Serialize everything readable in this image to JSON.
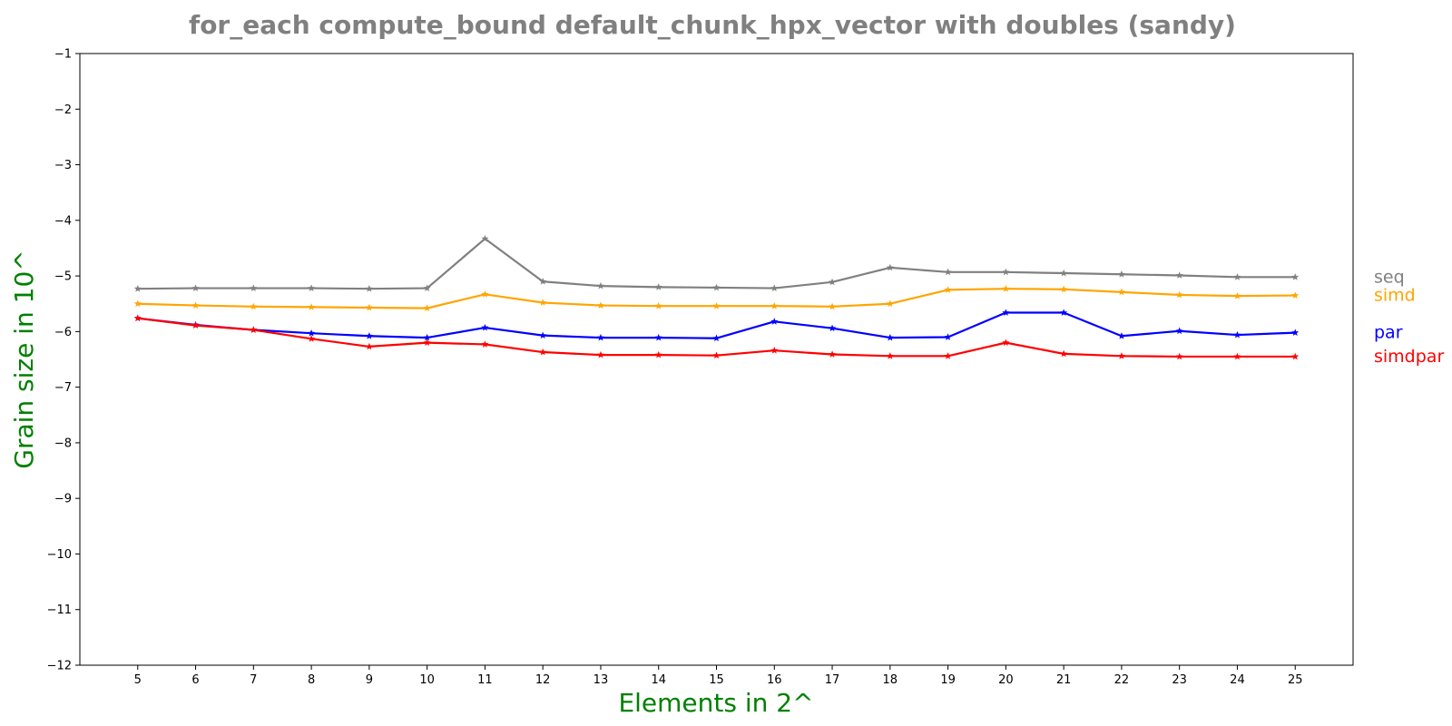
{
  "chart_data": {
    "type": "line",
    "title": "for_each compute_bound default_chunk_hpx_vector with doubles  (sandy)",
    "xlabel": "Elements in 2^",
    "ylabel": "Grain size in 10^",
    "x": [
      5,
      6,
      7,
      8,
      9,
      10,
      11,
      12,
      13,
      14,
      15,
      16,
      17,
      18,
      19,
      20,
      21,
      22,
      23,
      24,
      25
    ],
    "xlim": [
      4,
      26
    ],
    "ylim": [
      -12,
      -1
    ],
    "yticks": [
      -1,
      -2,
      -3,
      -4,
      -5,
      -6,
      -7,
      -8,
      -9,
      -10,
      -11,
      -12
    ],
    "ytick_labels": [
      "−1",
      "−2",
      "−3",
      "−4",
      "−5",
      "−6",
      "−7",
      "−8",
      "−9",
      "−10",
      "−11",
      "−12"
    ],
    "grid": false,
    "legend_placement": "right-outside",
    "series": [
      {
        "name": "seq",
        "color": "#808080",
        "marker": "star",
        "values": [
          -5.23,
          -5.22,
          -5.22,
          -5.22,
          -5.23,
          -5.22,
          -4.33,
          -5.1,
          -5.18,
          -5.2,
          -5.21,
          -5.22,
          -5.11,
          -4.85,
          -4.93,
          -4.93,
          -4.95,
          -4.97,
          -4.99,
          -5.02,
          -5.02
        ]
      },
      {
        "name": "simd",
        "color": "#ffa500",
        "marker": "star",
        "values": [
          -5.5,
          -5.53,
          -5.55,
          -5.56,
          -5.57,
          -5.58,
          -5.33,
          -5.48,
          -5.53,
          -5.54,
          -5.54,
          -5.54,
          -5.55,
          -5.5,
          -5.25,
          -5.23,
          -5.24,
          -5.29,
          -5.34,
          -5.36,
          -5.35
        ]
      },
      {
        "name": "par",
        "color": "#0000ff",
        "marker": "star",
        "values": [
          -5.76,
          -5.88,
          -5.97,
          -6.03,
          -6.08,
          -6.11,
          -5.93,
          -6.07,
          -6.11,
          -6.11,
          -6.12,
          -5.82,
          -5.94,
          -6.11,
          -6.1,
          -5.66,
          -5.66,
          -6.08,
          -5.99,
          -6.06,
          -6.02
        ]
      },
      {
        "name": "simdpar",
        "color": "#ff0000",
        "marker": "star",
        "values": [
          -5.76,
          -5.89,
          -5.97,
          -6.13,
          -6.27,
          -6.2,
          -6.23,
          -6.37,
          -6.42,
          -6.42,
          -6.43,
          -6.34,
          -6.41,
          -6.44,
          -6.44,
          -6.2,
          -6.4,
          -6.44,
          -6.45,
          -6.45,
          -6.45
        ]
      }
    ]
  }
}
